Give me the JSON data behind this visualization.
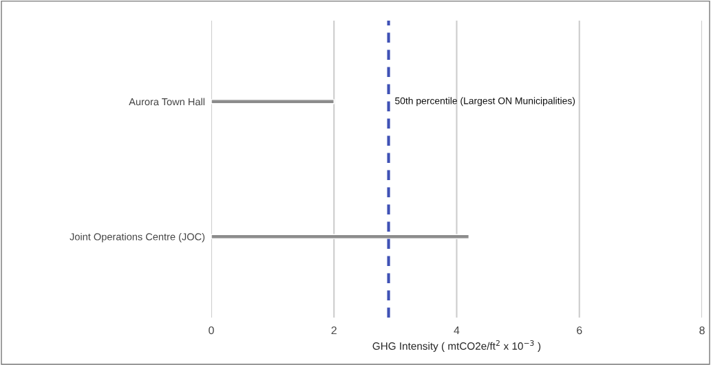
{
  "chart_data": {
    "type": "bar",
    "orientation": "horizontal",
    "xlabel": "GHG Intensity ( mtCO2e/ft$^{2}$ x 10$^{−3}$ )",
    "categories": [
      "Aurora Town Hall",
      "Joint Operations Centre (JOC)"
    ],
    "values": [
      2.0,
      4.2
    ],
    "color": "#8c8c8c",
    "xlim": [
      0,
      8
    ],
    "xticks": [
      0,
      2,
      4,
      6,
      8
    ],
    "grid": "x",
    "ref_lines": [
      {
        "axis": "x",
        "value": 2.89,
        "label": "50th percentile (Largest ON Municipalities)",
        "color": "#3f51b5",
        "line_style": "dashed"
      }
    ]
  }
}
